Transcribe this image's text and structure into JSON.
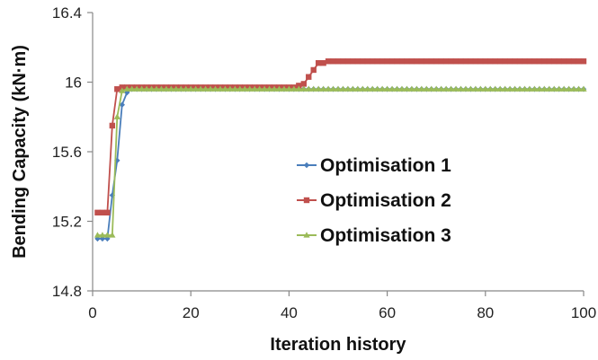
{
  "chart_data": {
    "type": "line",
    "xlabel": "Iteration history",
    "ylabel": "Bending Capacity (kN·m)",
    "xlim": [
      0,
      100
    ],
    "ylim": [
      14.8,
      16.4
    ],
    "xticks": [
      0,
      20,
      40,
      60,
      80,
      100
    ],
    "yticks": [
      14.8,
      15.2,
      15.6,
      16,
      16.4
    ],
    "ytick_labels": [
      "14.8",
      "15.2",
      "15.6",
      "16",
      "16.4"
    ],
    "xtick_labels": [
      "0",
      "20",
      "40",
      "60",
      "80",
      "100"
    ],
    "grid": false,
    "legend_position": "center-right",
    "series": [
      {
        "name": "Optimisation 1",
        "color": "#4A7EBB",
        "marker": "diamond",
        "points": [
          [
            1,
            15.1
          ],
          [
            2,
            15.1
          ],
          [
            3,
            15.1
          ],
          [
            4,
            15.35
          ],
          [
            5,
            15.55
          ],
          [
            6,
            15.87
          ],
          [
            7,
            15.94
          ],
          [
            8,
            15.96
          ],
          [
            100,
            15.96
          ]
        ]
      },
      {
        "name": "Optimisation 2",
        "color": "#C0504D",
        "marker": "square",
        "points": [
          [
            1,
            15.25
          ],
          [
            2,
            15.25
          ],
          [
            3,
            15.25
          ],
          [
            4,
            15.75
          ],
          [
            5,
            15.96
          ],
          [
            6,
            15.97
          ],
          [
            7,
            15.97
          ],
          [
            41,
            15.97
          ],
          [
            42,
            15.98
          ],
          [
            43,
            15.99
          ],
          [
            44,
            16.03
          ],
          [
            45,
            16.07
          ],
          [
            46,
            16.11
          ],
          [
            47,
            16.11
          ],
          [
            48,
            16.12
          ],
          [
            100,
            16.12
          ]
        ]
      },
      {
        "name": "Optimisation 3",
        "color": "#9BBB59",
        "marker": "triangle",
        "points": [
          [
            1,
            15.12
          ],
          [
            2,
            15.12
          ],
          [
            3,
            15.12
          ],
          [
            4,
            15.12
          ],
          [
            5,
            15.8
          ],
          [
            6,
            15.95
          ],
          [
            7,
            15.96
          ],
          [
            100,
            15.96
          ]
        ]
      }
    ]
  }
}
